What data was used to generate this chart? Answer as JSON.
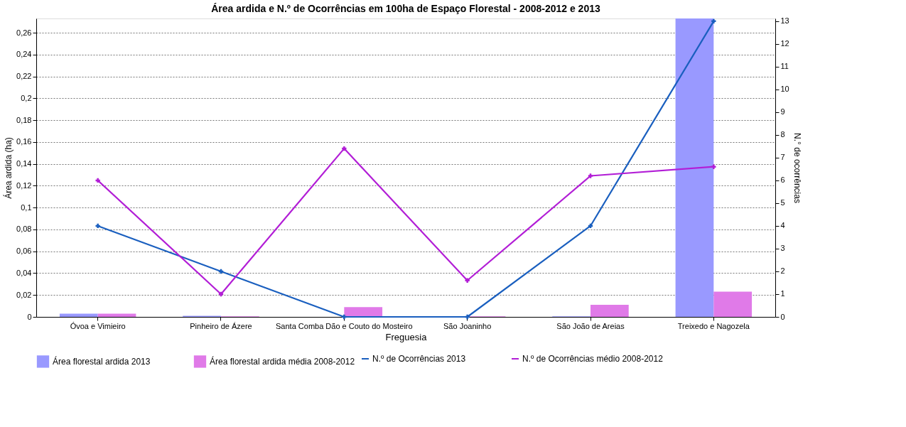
{
  "chart_data": {
    "type": "bar",
    "title": "Área ardida e N.º de Ocorrências em 100ha de  Espaço Florestal - 2008-2012 e 2013",
    "xlabel": "Freguesia",
    "ylabel": "Área ardida (ha)",
    "y2label": "N.° de ocorrências",
    "categories": [
      "Óvoa e Vimieiro",
      "Pinheiro de Ázere",
      "Santa Comba Dão e Couto do Mosteiro",
      "São Joaninho",
      "São João de Areias",
      "Treixedo e Nagozela"
    ],
    "series": [
      {
        "name": "Área florestal ardida 2013",
        "color": "#9999ff",
        "values": [
          0.003,
          0.001,
          0,
          0,
          0.0005,
          0.273
        ]
      },
      {
        "name": "Área florestal ardida média 2008-2012",
        "color": "#e07ae8",
        "values": [
          0.003,
          0.0005,
          0.009,
          0.0005,
          0.011,
          0.023
        ]
      },
      {
        "name": "N.º de Ocorrências 2013",
        "color": "#1a5fbf",
        "type": "line",
        "axis": "y2",
        "values": [
          4,
          2,
          0,
          0,
          4,
          13
        ]
      },
      {
        "name": "N.º de Ocorrências médio 2008-2012",
        "color": "#b21ed6",
        "type": "line",
        "axis": "y2",
        "values": [
          6,
          1,
          7.4,
          1.6,
          6.2,
          6.6
        ]
      }
    ],
    "ylim": [
      0,
      0.273
    ],
    "yticks": [
      0,
      {
        "value": 0.02,
        "label": "0,02"
      },
      {
        "value": 0.04,
        "label": "0,04"
      },
      {
        "value": 0.06,
        "label": "0,06"
      },
      {
        "value": 0.08,
        "label": "0,08"
      },
      {
        "value": 0.1,
        "label": "0,1"
      },
      {
        "value": 0.12,
        "label": "0,12"
      },
      {
        "value": 0.14,
        "label": "0,14"
      },
      {
        "value": 0.16,
        "label": "0,16"
      },
      {
        "value": 0.18,
        "label": "0,18"
      },
      {
        "value": 0.2,
        "label": "0,2"
      },
      {
        "value": 0.22,
        "label": "0,22"
      },
      {
        "value": 0.24,
        "label": "0,24"
      },
      {
        "value": 0.26,
        "label": "0,26"
      }
    ],
    "y2lim": [
      0,
      13.12
    ],
    "y2ticks": [
      0,
      1,
      2,
      3,
      4,
      5,
      6,
      7,
      8,
      9,
      10,
      11,
      12,
      13
    ],
    "grid": "y",
    "legend": "bottom",
    "marker": "cross",
    "line_style": "solid"
  }
}
